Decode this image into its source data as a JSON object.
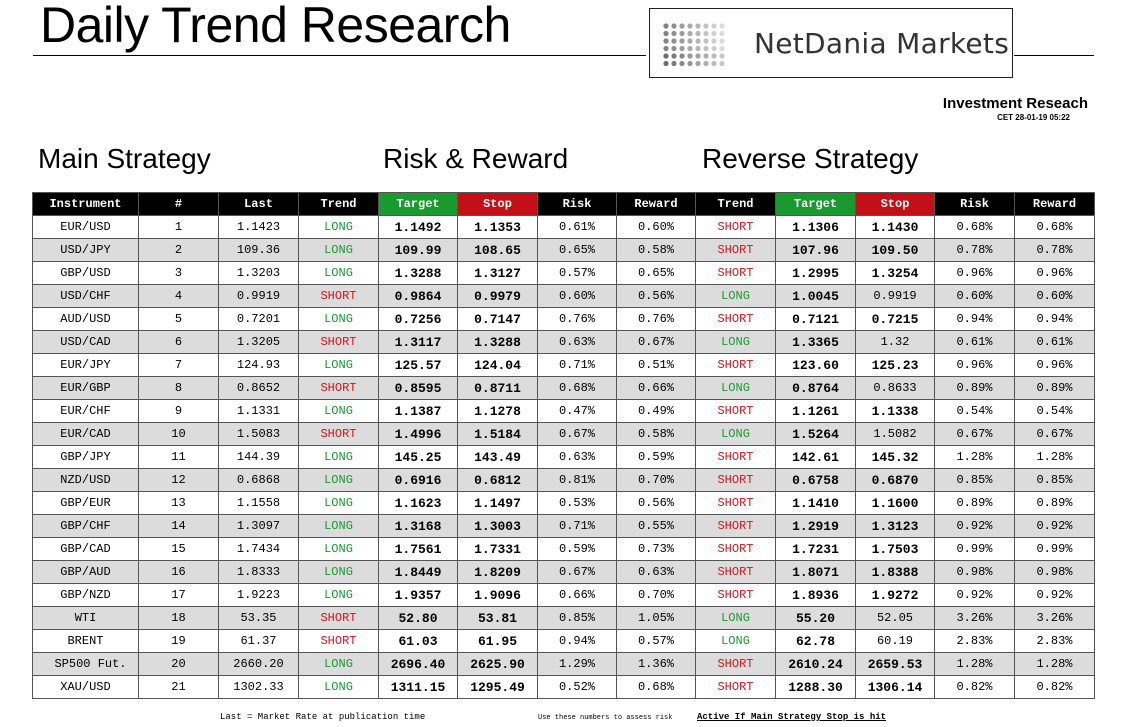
{
  "header": {
    "title": "Daily Trend Research",
    "logo_text": "NetDania Markets",
    "subtitle": "Investment Reseach",
    "datetime": "CET 28-01-19 05:22"
  },
  "sections": {
    "main": "Main Strategy",
    "risk": "Risk & Reward",
    "reverse": "Reverse Strategy"
  },
  "columns": [
    "Instrument",
    "#",
    "Last",
    "Trend",
    "Target",
    "Stop",
    "Risk",
    "Reward",
    "Trend",
    "Target",
    "Stop",
    "Risk",
    "Reward"
  ],
  "rows": [
    [
      "EUR/USD",
      "1",
      "1.1423",
      "LONG",
      "1.1492",
      "1.1353",
      "0.61%",
      "0.60%",
      "SHORT",
      "1.1306",
      "1.1430",
      "0.68%",
      "0.68%"
    ],
    [
      "USD/JPY",
      "2",
      "109.36",
      "LONG",
      "109.99",
      "108.65",
      "0.65%",
      "0.58%",
      "SHORT",
      "107.96",
      "109.50",
      "0.78%",
      "0.78%"
    ],
    [
      "GBP/USD",
      "3",
      "1.3203",
      "LONG",
      "1.3288",
      "1.3127",
      "0.57%",
      "0.65%",
      "SHORT",
      "1.2995",
      "1.3254",
      "0.96%",
      "0.96%"
    ],
    [
      "USD/CHF",
      "4",
      "0.9919",
      "SHORT",
      "0.9864",
      "0.9979",
      "0.60%",
      "0.56%",
      "LONG",
      "1.0045",
      "0.9919",
      "0.60%",
      "0.60%"
    ],
    [
      "AUD/USD",
      "5",
      "0.7201",
      "LONG",
      "0.7256",
      "0.7147",
      "0.76%",
      "0.76%",
      "SHORT",
      "0.7121",
      "0.7215",
      "0.94%",
      "0.94%"
    ],
    [
      "USD/CAD",
      "6",
      "1.3205",
      "SHORT",
      "1.3117",
      "1.3288",
      "0.63%",
      "0.67%",
      "LONG",
      "1.3365",
      "1.32",
      "0.61%",
      "0.61%"
    ],
    [
      "EUR/JPY",
      "7",
      "124.93",
      "LONG",
      "125.57",
      "124.04",
      "0.71%",
      "0.51%",
      "SHORT",
      "123.60",
      "125.23",
      "0.96%",
      "0.96%"
    ],
    [
      "EUR/GBP",
      "8",
      "0.8652",
      "SHORT",
      "0.8595",
      "0.8711",
      "0.68%",
      "0.66%",
      "LONG",
      "0.8764",
      "0.8633",
      "0.89%",
      "0.89%"
    ],
    [
      "EUR/CHF",
      "9",
      "1.1331",
      "LONG",
      "1.1387",
      "1.1278",
      "0.47%",
      "0.49%",
      "SHORT",
      "1.1261",
      "1.1338",
      "0.54%",
      "0.54%"
    ],
    [
      "EUR/CAD",
      "10",
      "1.5083",
      "SHORT",
      "1.4996",
      "1.5184",
      "0.67%",
      "0.58%",
      "LONG",
      "1.5264",
      "1.5082",
      "0.67%",
      "0.67%"
    ],
    [
      "GBP/JPY",
      "11",
      "144.39",
      "LONG",
      "145.25",
      "143.49",
      "0.63%",
      "0.59%",
      "SHORT",
      "142.61",
      "145.32",
      "1.28%",
      "1.28%"
    ],
    [
      "NZD/USD",
      "12",
      "0.6868",
      "LONG",
      "0.6916",
      "0.6812",
      "0.81%",
      "0.70%",
      "SHORT",
      "0.6758",
      "0.6870",
      "0.85%",
      "0.85%"
    ],
    [
      "GBP/EUR",
      "13",
      "1.1558",
      "LONG",
      "1.1623",
      "1.1497",
      "0.53%",
      "0.56%",
      "SHORT",
      "1.1410",
      "1.1600",
      "0.89%",
      "0.89%"
    ],
    [
      "GBP/CHF",
      "14",
      "1.3097",
      "LONG",
      "1.3168",
      "1.3003",
      "0.71%",
      "0.55%",
      "SHORT",
      "1.2919",
      "1.3123",
      "0.92%",
      "0.92%"
    ],
    [
      "GBP/CAD",
      "15",
      "1.7434",
      "LONG",
      "1.7561",
      "1.7331",
      "0.59%",
      "0.73%",
      "SHORT",
      "1.7231",
      "1.7503",
      "0.99%",
      "0.99%"
    ],
    [
      "GBP/AUD",
      "16",
      "1.8333",
      "LONG",
      "1.8449",
      "1.8209",
      "0.67%",
      "0.63%",
      "SHORT",
      "1.8071",
      "1.8388",
      "0.98%",
      "0.98%"
    ],
    [
      "GBP/NZD",
      "17",
      "1.9223",
      "LONG",
      "1.9357",
      "1.9096",
      "0.66%",
      "0.70%",
      "SHORT",
      "1.8936",
      "1.9272",
      "0.92%",
      "0.92%"
    ],
    [
      "WTI",
      "18",
      "53.35",
      "SHORT",
      "52.80",
      "53.81",
      "0.85%",
      "1.05%",
      "LONG",
      "55.20",
      "52.05",
      "3.26%",
      "3.26%"
    ],
    [
      "BRENT",
      "19",
      "61.37",
      "SHORT",
      "61.03",
      "61.95",
      "0.94%",
      "0.57%",
      "LONG",
      "62.78",
      "60.19",
      "2.83%",
      "2.83%"
    ],
    [
      "SP500 Fut.",
      "20",
      "2660.20",
      "LONG",
      "2696.40",
      "2625.90",
      "1.29%",
      "1.36%",
      "SHORT",
      "2610.24",
      "2659.53",
      "1.28%",
      "1.28%"
    ],
    [
      "XAU/USD",
      "21",
      "1302.33",
      "LONG",
      "1311.15",
      "1295.49",
      "0.52%",
      "0.68%",
      "SHORT",
      "1288.30",
      "1306.14",
      "0.82%",
      "0.82%"
    ]
  ],
  "footnotes": {
    "last": "Last = Market Rate at publication time",
    "risk": "Use these numbers to assess risk",
    "active": "Active If Main Strategy Stop is hit"
  }
}
